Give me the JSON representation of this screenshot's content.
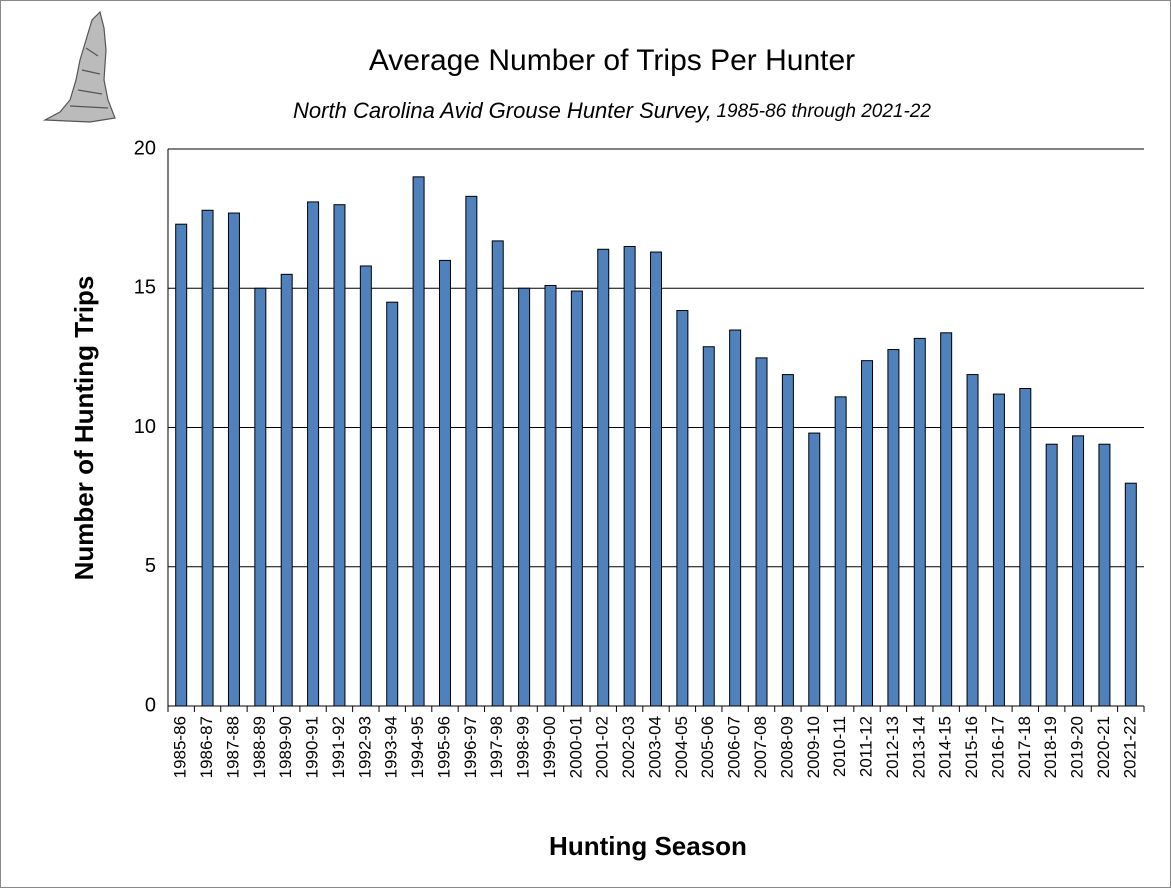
{
  "chart_data": {
    "type": "bar",
    "title": "Average Number of Trips Per Hunter",
    "subtitle": "North Carolina Avid Grouse Hunter Survey,",
    "subtitle_years": "1985-86 through 2021-22",
    "x_label": "Hunting Season",
    "y_label": "Number of Hunting Trips",
    "categories": [
      "1985-86",
      "1986-87",
      "1987-88",
      "1988-89",
      "1989-90",
      "1990-91",
      "1991-92",
      "1992-93",
      "1993-94",
      "1994-95",
      "1995-96",
      "1996-97",
      "1997-98",
      "1998-99",
      "1999-00",
      "2000-01",
      "2001-02",
      "2002-03",
      "2003-04",
      "2004-05",
      "2005-06",
      "2006-07",
      "2007-08",
      "2008-09",
      "2009-10",
      "2010-11",
      "2011-12",
      "2012-13",
      "2013-14",
      "2014-15",
      "2015-16",
      "2016-17",
      "2017-18",
      "2018-19",
      "2019-20",
      "2020-21",
      "2021-22"
    ],
    "values": [
      17.3,
      17.8,
      17.7,
      15.0,
      15.5,
      18.1,
      18.0,
      15.8,
      14.5,
      19.0,
      16.0,
      18.3,
      16.7,
      15.0,
      15.1,
      14.9,
      16.4,
      16.5,
      16.3,
      14.2,
      12.9,
      13.5,
      12.5,
      11.9,
      9.8,
      11.1,
      12.4,
      12.8,
      13.2,
      13.4,
      11.9,
      11.2,
      11.4,
      9.4,
      9.7,
      9.4,
      8.0
    ],
    "color": "#4f81bd",
    "ylim": [
      0,
      20
    ],
    "yticks": [
      0,
      5,
      10,
      15,
      20
    ],
    "grid": true
  }
}
